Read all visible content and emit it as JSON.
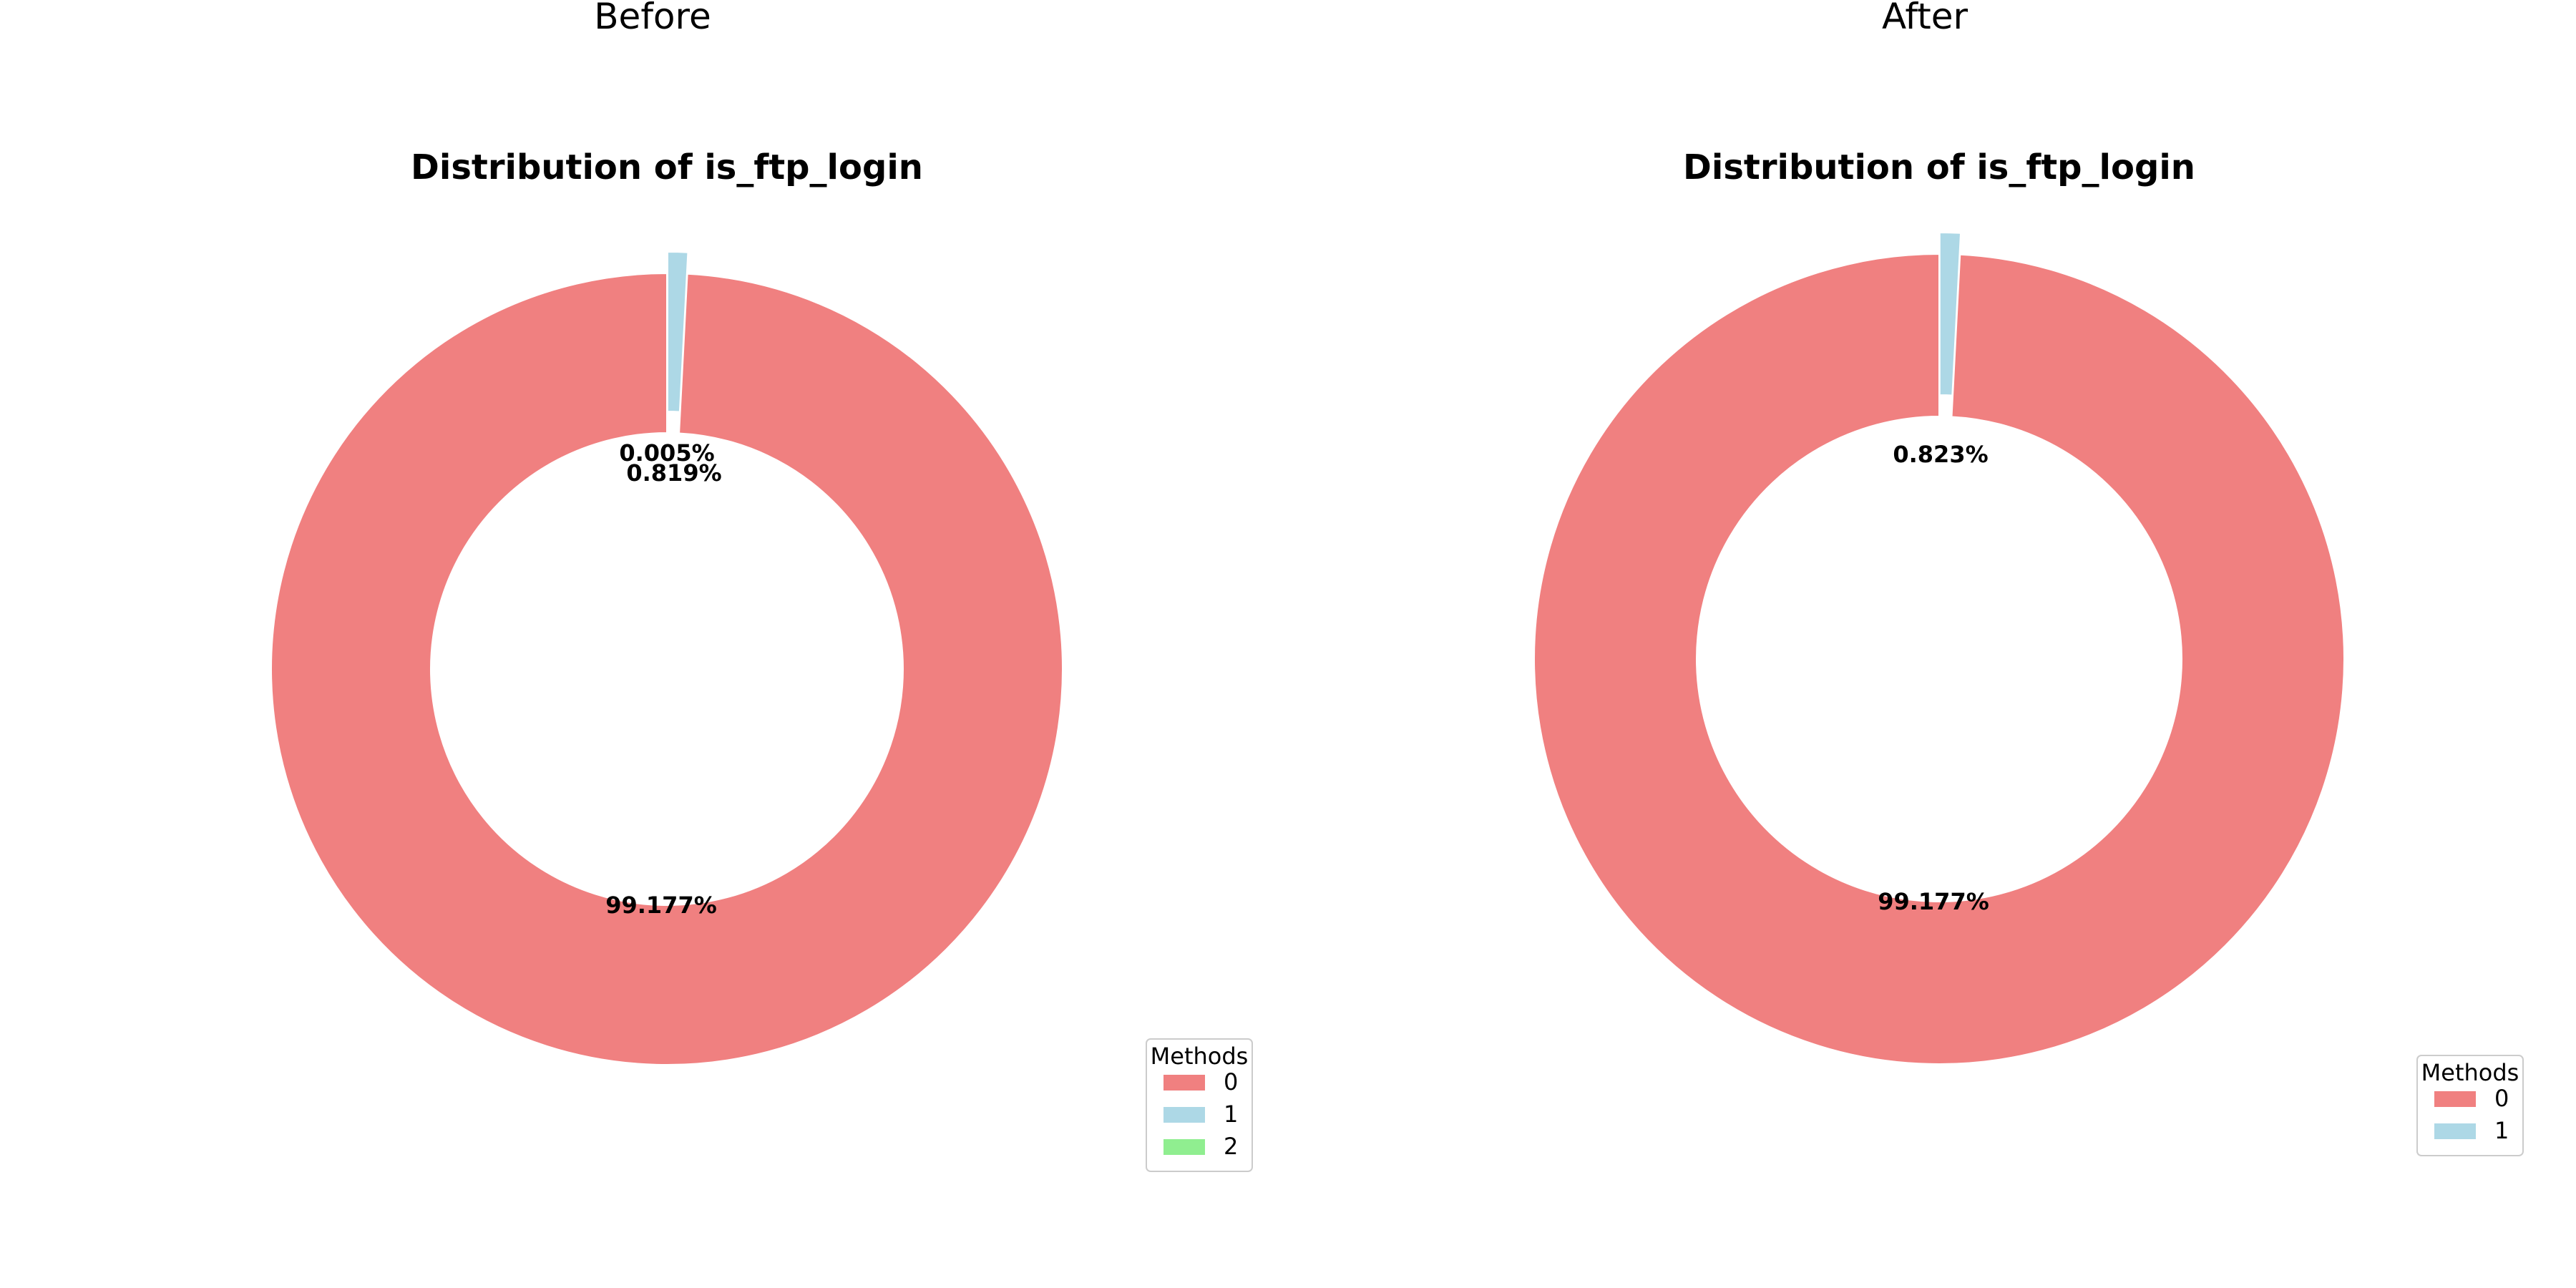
{
  "chart_data": [
    {
      "type": "pie",
      "panel_title": "Before",
      "title": "Distribution of is_ftp_login",
      "categories": [
        "0",
        "1",
        "2"
      ],
      "values": [
        99.177,
        0.819,
        0.005
      ],
      "labels": [
        "99.177%",
        "0.819%",
        "0.005%"
      ],
      "colors": [
        "#f08080",
        "#add8e6",
        "#90ee90"
      ],
      "donut": true,
      "legend": {
        "title": "Methods",
        "entries": [
          "0",
          "1",
          "2"
        ],
        "placement": "lower-right"
      }
    },
    {
      "type": "pie",
      "panel_title": "After",
      "title": "Distribution of is_ftp_login",
      "categories": [
        "0",
        "1"
      ],
      "values": [
        99.177,
        0.823
      ],
      "labels": [
        "99.177%",
        "0.823%"
      ],
      "colors": [
        "#f08080",
        "#add8e6"
      ],
      "donut": true,
      "legend": {
        "title": "Methods",
        "entries": [
          "0",
          "1"
        ],
        "placement": "lower-right"
      }
    }
  ]
}
